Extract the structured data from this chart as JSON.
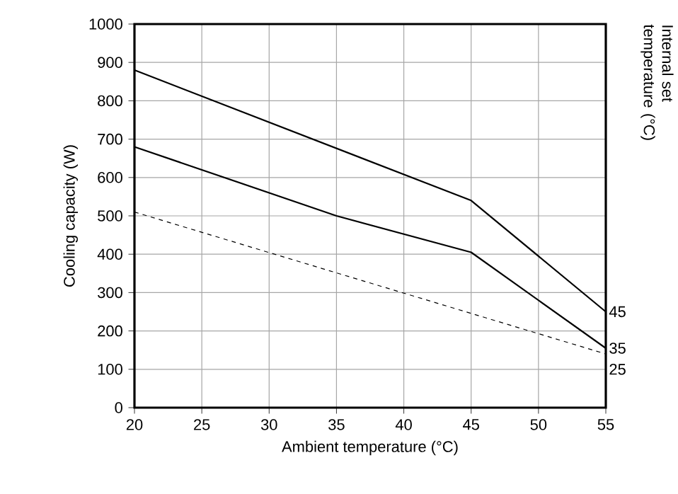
{
  "chart_data": {
    "type": "line",
    "xlabel": "Ambient temperature (°C)",
    "ylabel": "Cooling capacity (W)",
    "y2label": "Internal set temperature (°C)",
    "xlim": [
      20,
      55
    ],
    "ylim": [
      0,
      1000
    ],
    "xticks": [
      20,
      25,
      30,
      35,
      40,
      45,
      50,
      55
    ],
    "yticks": [
      0,
      100,
      200,
      300,
      400,
      500,
      600,
      700,
      800,
      900,
      1000
    ],
    "grid": true,
    "marker": "none",
    "series": [
      {
        "name": "45",
        "color": "#000000",
        "line_style": "solid",
        "x": [
          20,
          45,
          55
        ],
        "values": [
          880,
          540,
          250
        ]
      },
      {
        "name": "35",
        "color": "#000000",
        "line_style": "solid",
        "x": [
          20,
          35,
          45,
          55
        ],
        "values": [
          680,
          500,
          405,
          155
        ]
      },
      {
        "name": "25",
        "color": "#000000",
        "line_style": "dashed",
        "x": [
          20,
          55
        ],
        "values": [
          510,
          140
        ]
      }
    ]
  }
}
